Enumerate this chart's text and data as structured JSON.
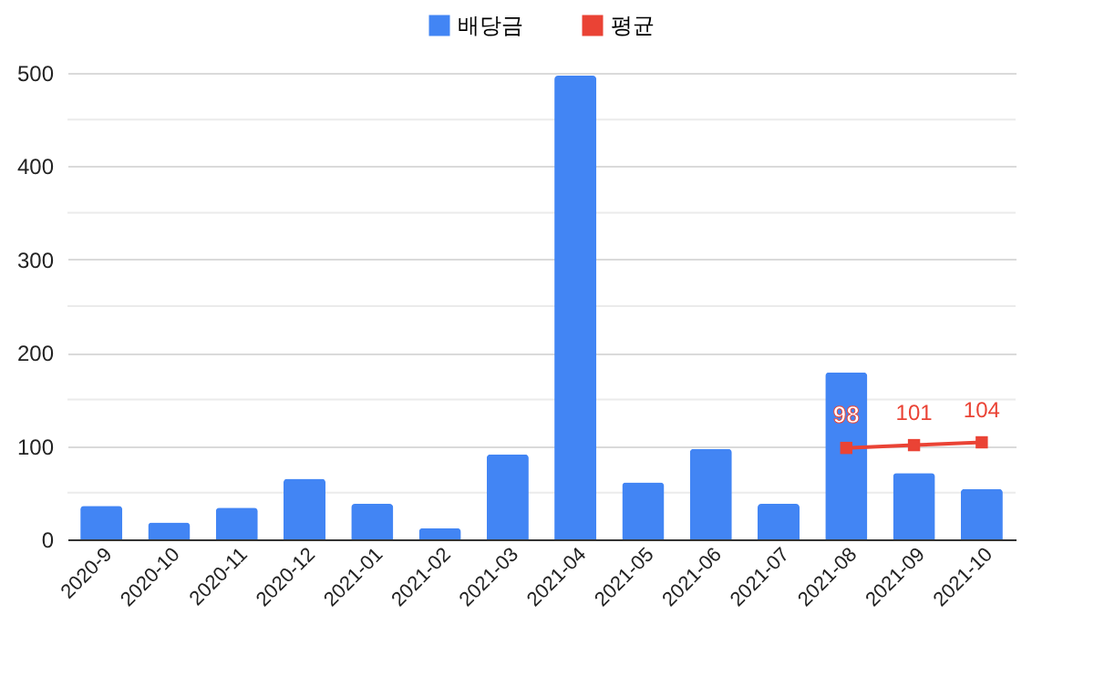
{
  "chart_data": {
    "type": "bar",
    "categories": [
      "2020-9",
      "2020-10",
      "2020-11",
      "2020-12",
      "2021-01",
      "2021-02",
      "2021-03",
      "2021-04",
      "2021-05",
      "2021-06",
      "2021-07",
      "2021-08",
      "2021-09",
      "2021-10"
    ],
    "series": [
      {
        "name": "배당금",
        "color": "#4285f4",
        "values": [
          36,
          18,
          34,
          65,
          38,
          12,
          91,
          497,
          61,
          97,
          38,
          179,
          71,
          54
        ]
      },
      {
        "name": "평균",
        "type": "line",
        "color": "#ea4335",
        "marker": "square",
        "values": [
          null,
          null,
          null,
          null,
          null,
          null,
          null,
          null,
          null,
          null,
          null,
          98,
          101,
          104
        ],
        "value_labels": [
          null,
          null,
          null,
          null,
          null,
          null,
          null,
          null,
          null,
          null,
          null,
          "98",
          "101",
          "104"
        ]
      }
    ],
    "ylim": [
      0,
      500
    ],
    "yticks": [
      0,
      {
        "value": 50,
        "label": null
      },
      100,
      {
        "value": 150,
        "label": null
      },
      200,
      {
        "value": 250,
        "label": null
      },
      300,
      {
        "value": 350,
        "label": null
      },
      400,
      {
        "value": 450,
        "label": null
      },
      500
    ],
    "grid": "y",
    "legend": "top"
  }
}
